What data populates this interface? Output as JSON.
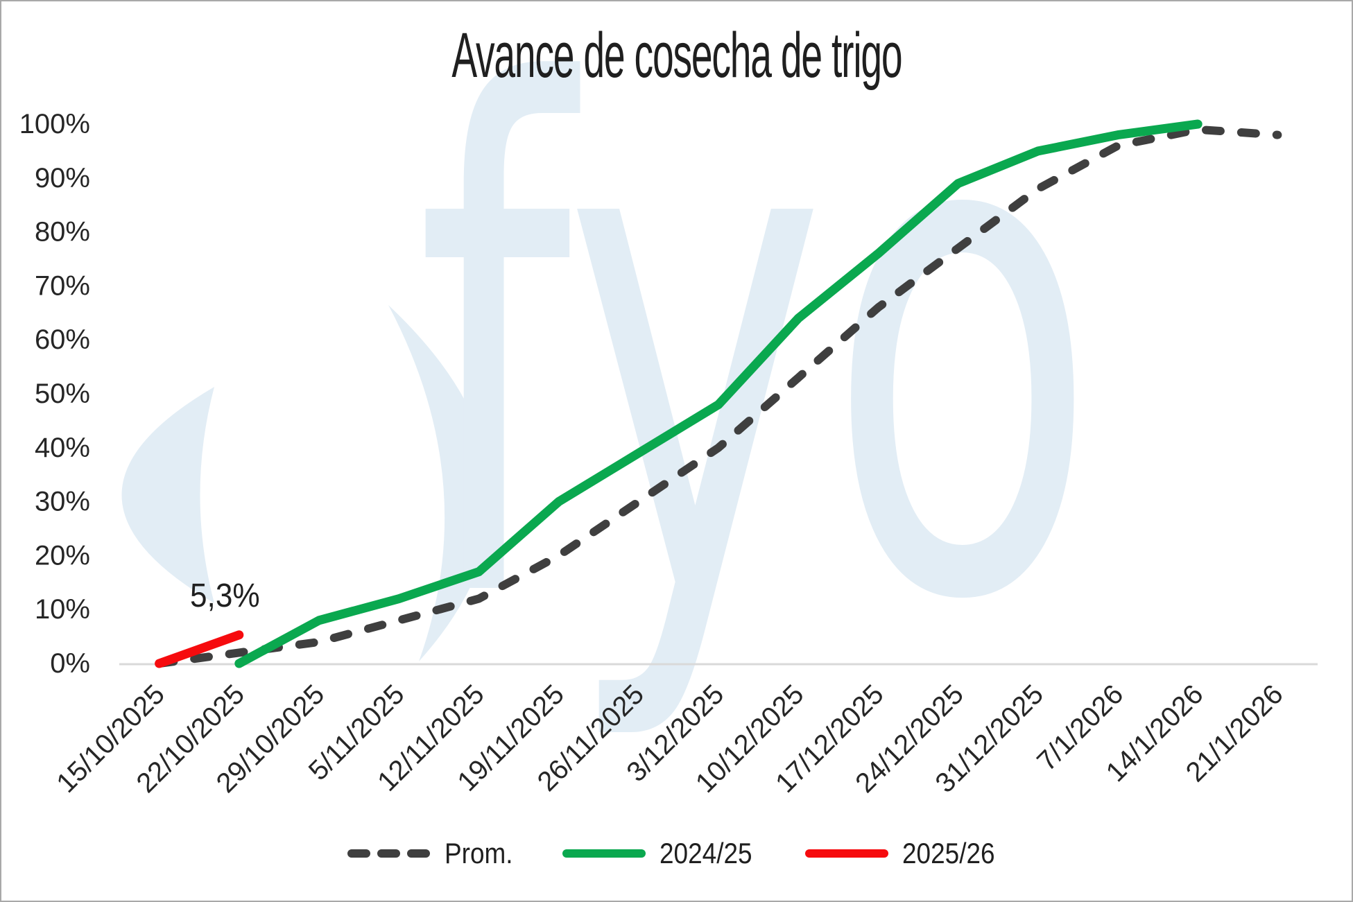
{
  "chart_data": {
    "type": "line",
    "title": "Avance de cosecha de trigo",
    "categories": [
      "15/10/2025",
      "22/10/2025",
      "29/10/2025",
      "5/11/2025",
      "12/11/2025",
      "19/11/2025",
      "26/11/2025",
      "3/12/2025",
      "10/12/2025",
      "17/12/2025",
      "24/12/2025",
      "31/12/2025",
      "7/1/2026",
      "14/1/2026",
      "21/1/2026"
    ],
    "series": [
      {
        "name": "Prom.",
        "style": "dashed",
        "color": "#3f3f3f",
        "values": [
          0,
          2,
          4,
          8,
          12,
          20,
          30,
          40,
          53,
          66,
          77,
          88,
          96,
          99,
          98
        ]
      },
      {
        "name": "2024/25",
        "style": "solid",
        "color": "#0aa84f",
        "values": [
          null,
          0,
          8,
          12,
          17,
          30,
          39,
          48,
          64,
          76,
          89,
          95,
          98,
          100,
          null
        ]
      },
      {
        "name": "2025/26",
        "style": "solid",
        "color": "#f60b0e",
        "values": [
          0,
          5.3,
          null,
          null,
          null,
          null,
          null,
          null,
          null,
          null,
          null,
          null,
          null,
          null,
          null
        ]
      }
    ],
    "yticks": [
      "0%",
      "10%",
      "20%",
      "30%",
      "40%",
      "50%",
      "60%",
      "70%",
      "80%",
      "90%",
      "100%"
    ],
    "ylim": [
      0,
      100
    ],
    "grid": "off",
    "legend_position": "bottom",
    "annotation": {
      "text": "5,3%",
      "series": "2025/26",
      "point": "22/10/2025"
    },
    "watermark_text": "fyo",
    "axis_color": "#d9d9d9",
    "watermark_color": "#e2edf5"
  }
}
